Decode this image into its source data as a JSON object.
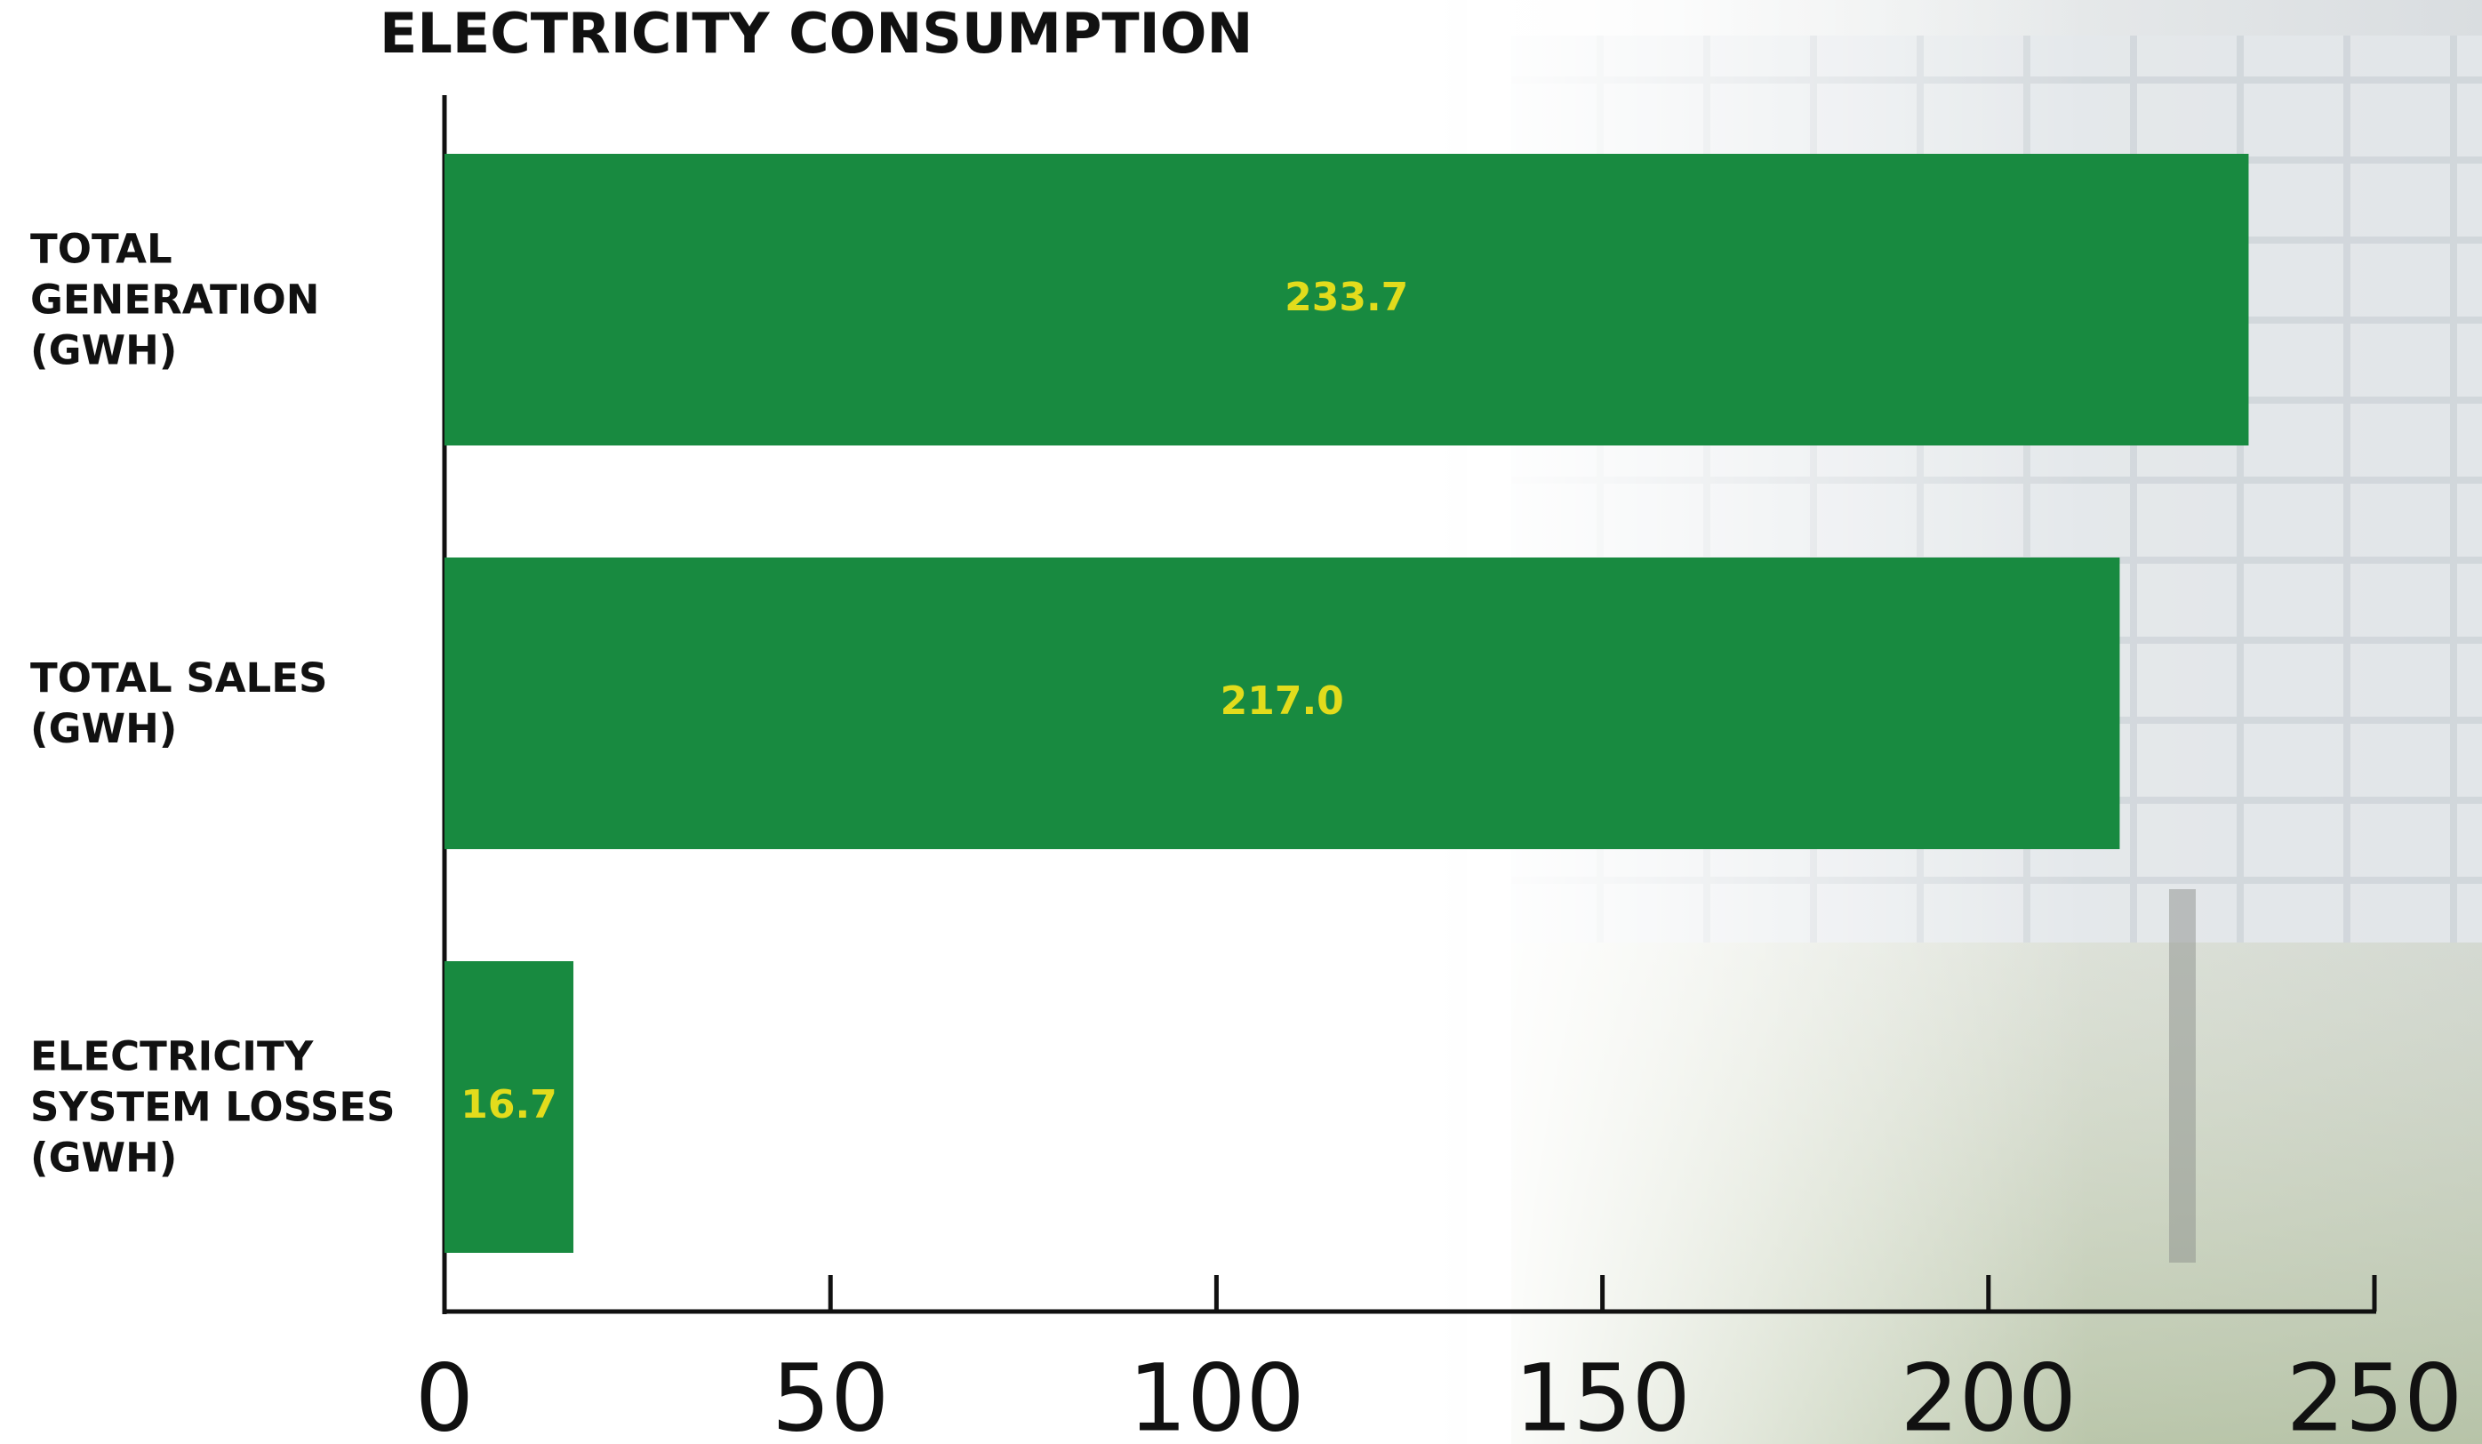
{
  "chart_data": {
    "type": "hbar",
    "title": "ELECTRICITY CONSUMPTION",
    "categories": [
      "TOTAL\nGENERATION\n(GWH)",
      "TOTAL SALES\n(GWH)",
      "ELECTRICITY\nSYSTEM LOSSES\n(GWH)"
    ],
    "values": [
      233.7,
      217,
      16.7
    ],
    "value_labels": [
      "233.7",
      "217.0",
      "16.7"
    ],
    "color": "#188a40",
    "label_color": "#e2dc1c",
    "xlim": [
      0,
      250
    ],
    "xticks": [
      0,
      50,
      100,
      150,
      200,
      250
    ]
  }
}
